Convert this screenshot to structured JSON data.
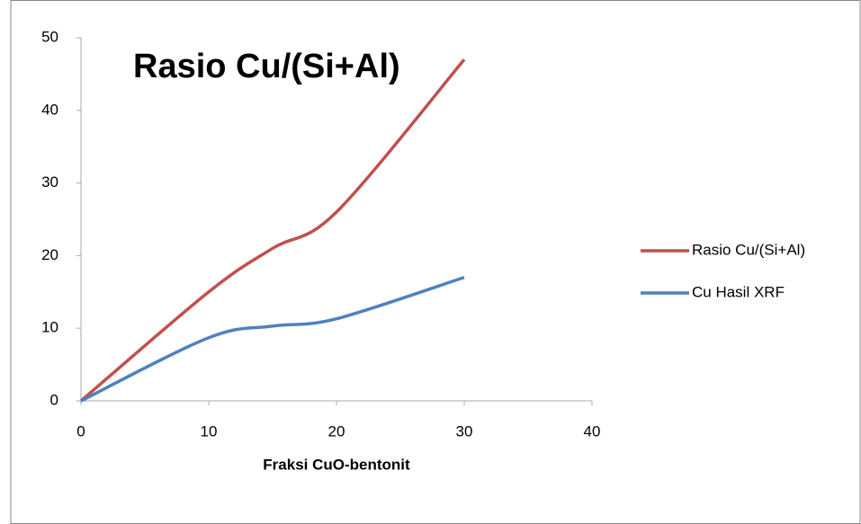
{
  "chart_data": {
    "type": "line",
    "title": "Rasio Cu/(Si+Al)",
    "x_label": "Fraksi CuO-bentonit",
    "x": [
      0,
      10,
      15,
      20,
      30
    ],
    "series": [
      {
        "name": "Rasio Cu/(Si+Al)",
        "color": "#c0504d",
        "values": [
          0,
          15,
          21,
          26,
          47
        ]
      },
      {
        "name": "Cu Hasil XRF",
        "color": "#4f81bd",
        "values": [
          0,
          8.7,
          10.3,
          11.3,
          17
        ]
      }
    ],
    "xlim": [
      0,
      40
    ],
    "xticks": [
      0,
      10,
      20,
      30,
      40
    ],
    "ylim": [
      0,
      50
    ],
    "yticks": [
      0,
      10,
      20,
      30,
      40,
      50
    ],
    "grid": false
  }
}
